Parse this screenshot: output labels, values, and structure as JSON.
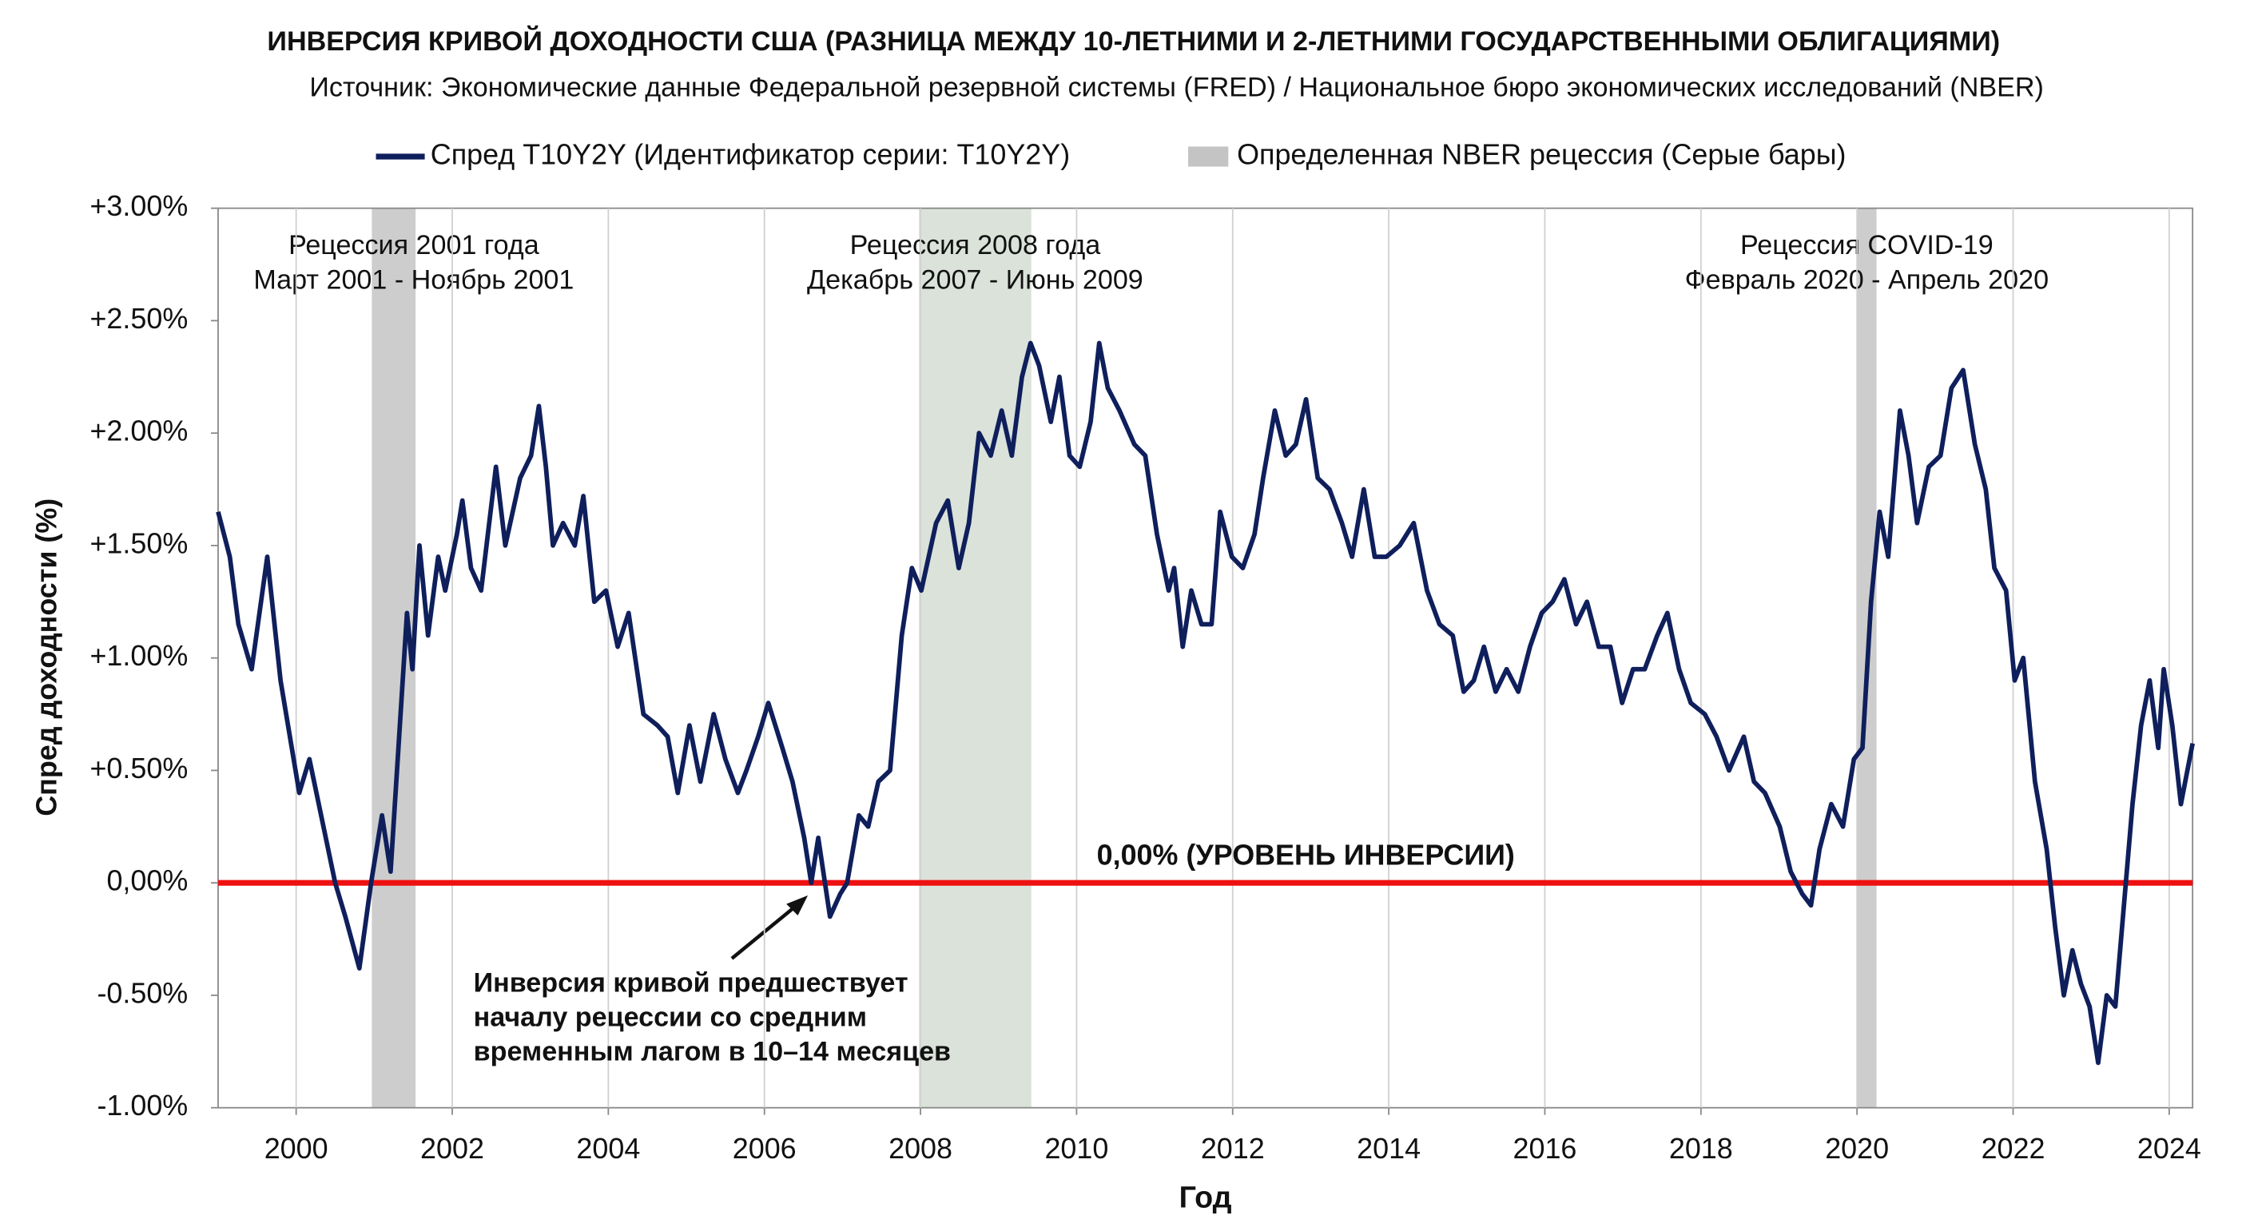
{
  "chart_data": {
    "type": "line",
    "title": "ИНВЕРСИЯ КРИВОЙ ДОХОДНОСТИ США (РАЗНИЦА МЕЖДУ 10-ЛЕТНИМИ И 2-ЛЕТНИМИ ГОСУДАРСТВЕННЫМИ ОБЛИГАЦИЯМИ)",
    "subtitle": "Источник: Экономические данные Федеральной резервной системы (FRED) / Национальное бюро экономических исследований (NBER)",
    "x_label": "Год",
    "y_label": "Спред доходности (%)",
    "xlim": [
      1999.0,
      2024.3
    ],
    "xticks": [
      2000,
      2002,
      2004,
      2006,
      2008,
      2010,
      2012,
      2014,
      2016,
      2018,
      2020,
      2022,
      2024
    ],
    "ylim": [
      -1,
      3
    ],
    "yticks": [
      {
        "value": 3,
        "label": "+3.00%"
      },
      {
        "value": 2.5,
        "label": "+2.50%"
      },
      {
        "value": 2,
        "label": "+2.00%"
      },
      {
        "value": 1.5,
        "label": "+1.50%"
      },
      {
        "value": 1,
        "label": "+1.00%"
      },
      {
        "value": 0.5,
        "label": "+0.50%"
      },
      {
        "value": 0,
        "label": "0,00%"
      },
      {
        "value": -0.5,
        "label": "-0.50%"
      },
      {
        "value": -1,
        "label": "-1.00%"
      }
    ],
    "grid": "x",
    "x": [
      1999.0,
      1999.15,
      1999.26,
      1999.43,
      1999.63,
      1999.8,
      2000.04,
      2000.17,
      2000.35,
      2000.5,
      2000.63,
      2000.81,
      2000.96,
      2001.1,
      2001.21,
      2001.42,
      2001.49,
      2001.58,
      2001.69,
      2001.82,
      2001.91,
      2002.06,
      2002.13,
      2002.24,
      2002.37,
      2002.56,
      2002.68,
      2002.87,
      2003.01,
      2003.11,
      2003.2,
      2003.29,
      2003.42,
      2003.57,
      2003.68,
      2003.82,
      2003.97,
      2004.12,
      2004.26,
      2004.45,
      2004.63,
      2004.76,
      2004.89,
      2005.04,
      2005.18,
      2005.35,
      2005.5,
      2005.66,
      2005.77,
      2005.92,
      2006.05,
      2006.23,
      2006.36,
      2006.51,
      2006.6,
      2006.69,
      2006.84,
      2006.97,
      2007.06,
      2007.21,
      2007.33,
      2007.46,
      2007.61,
      2007.76,
      2007.89,
      2008.01,
      2008.2,
      2008.35,
      2008.49,
      2008.62,
      2008.75,
      2008.9,
      2009.04,
      2009.17,
      2009.3,
      2009.41,
      2009.52,
      2009.67,
      2009.78,
      2009.91,
      2010.04,
      2010.18,
      2010.29,
      2010.4,
      2010.55,
      2010.74,
      2010.88,
      2011.03,
      2011.18,
      2011.25,
      2011.36,
      2011.47,
      2011.6,
      2011.73,
      2011.84,
      2011.99,
      2012.13,
      2012.28,
      2012.39,
      2012.54,
      2012.68,
      2012.81,
      2012.94,
      2013.09,
      2013.24,
      2013.4,
      2013.53,
      2013.68,
      2013.82,
      2013.97,
      2014.14,
      2014.32,
      2014.49,
      2014.65,
      2014.82,
      2014.96,
      2015.09,
      2015.22,
      2015.37,
      2015.51,
      2015.66,
      2015.81,
      2015.96,
      2016.1,
      2016.25,
      2016.4,
      2016.54,
      2016.69,
      2016.84,
      2016.99,
      2017.13,
      2017.28,
      2017.44,
      2017.57,
      2017.72,
      2017.87,
      2018.05,
      2018.2,
      2018.36,
      2018.55,
      2018.68,
      2018.82,
      2019.01,
      2019.15,
      2019.3,
      2019.41,
      2019.52,
      2019.67,
      2019.82,
      2019.96,
      2020.07,
      2020.18,
      2020.29,
      2020.4,
      2020.55,
      2020.66,
      2020.77,
      2020.92,
      2021.07,
      2021.21,
      2021.36,
      2021.51,
      2021.65,
      2021.76,
      2021.91,
      2022.02,
      2022.13,
      2022.28,
      2022.43,
      2022.54,
      2022.65,
      2022.76,
      2022.87,
      2022.98,
      2023.09,
      2023.2,
      2023.31,
      2023.42,
      2023.53,
      2023.64,
      2023.75,
      2023.86,
      2023.93,
      2024.04,
      2024.15,
      2024.3
    ],
    "series": [
      {
        "name": "Спред T10Y2Y (Идентификатор серии: T10Y2Y)",
        "color": "#0f1f5c",
        "values": [
          1.65,
          1.45,
          1.15,
          0.95,
          1.45,
          0.9,
          0.4,
          0.55,
          0.25,
          0.0,
          -0.15,
          -0.38,
          0.0,
          0.3,
          0.05,
          1.2,
          0.95,
          1.5,
          1.1,
          1.45,
          1.3,
          1.55,
          1.7,
          1.4,
          1.3,
          1.85,
          1.5,
          1.8,
          1.9,
          2.12,
          1.85,
          1.5,
          1.6,
          1.5,
          1.72,
          1.25,
          1.3,
          1.05,
          1.2,
          0.75,
          0.7,
          0.65,
          0.4,
          0.7,
          0.45,
          0.75,
          0.55,
          0.4,
          0.5,
          0.65,
          0.8,
          0.6,
          0.45,
          0.2,
          0.0,
          0.2,
          -0.15,
          -0.05,
          0.0,
          0.3,
          0.25,
          0.45,
          0.5,
          1.1,
          1.4,
          1.3,
          1.6,
          1.7,
          1.4,
          1.6,
          2.0,
          1.9,
          2.1,
          1.9,
          2.25,
          2.4,
          2.3,
          2.05,
          2.25,
          1.9,
          1.85,
          2.05,
          2.4,
          2.2,
          2.1,
          1.95,
          1.9,
          1.55,
          1.3,
          1.4,
          1.05,
          1.3,
          1.15,
          1.15,
          1.65,
          1.45,
          1.4,
          1.55,
          1.8,
          2.1,
          1.9,
          1.95,
          2.15,
          1.8,
          1.75,
          1.6,
          1.45,
          1.75,
          1.45,
          1.45,
          1.5,
          1.6,
          1.3,
          1.15,
          1.1,
          0.85,
          0.9,
          1.05,
          0.85,
          0.95,
          0.85,
          1.05,
          1.2,
          1.25,
          1.35,
          1.15,
          1.25,
          1.05,
          1.05,
          0.8,
          0.95,
          0.95,
          1.1,
          1.2,
          0.95,
          0.8,
          0.75,
          0.65,
          0.5,
          0.65,
          0.45,
          0.4,
          0.25,
          0.05,
          -0.05,
          -0.1,
          0.15,
          0.35,
          0.25,
          0.55,
          0.6,
          1.25,
          1.65,
          1.45,
          2.1,
          1.9,
          1.6,
          1.85,
          1.9,
          2.2,
          2.28,
          1.95,
          1.75,
          1.4,
          1.3,
          0.9,
          1.0,
          0.45,
          0.15,
          -0.2,
          -0.5,
          -0.3,
          -0.45,
          -0.55,
          -0.8,
          -0.5,
          -0.55,
          -0.1,
          0.35,
          0.7,
          0.9,
          0.6,
          0.95,
          0.7,
          0.35,
          0.62
        ]
      }
    ],
    "recession_legend": "Определенная NBER рецессия (Серые бары)",
    "recessions": [
      {
        "title": "Рецессия 2001 года",
        "period": "Март 2001 - Ноябрь 2001",
        "start": 2000.97,
        "end": 2001.53,
        "color": "#c4c4c4"
      },
      {
        "title": "Рецессия 2008 года",
        "period": "Декабрь 2007 - Июнь 2009",
        "start": 2007.98,
        "end": 2009.42,
        "color": "#d3ddd3"
      },
      {
        "title": "Рецессия COVID-19",
        "period": "Февраль 2020 - Апрель 2020",
        "start": 2020.0,
        "end": 2020.25,
        "color": "#c4c4c4"
      }
    ],
    "reference_line": {
      "value": 0,
      "label": "0,00% (УРОВЕНЬ ИНВЕРСИИ)",
      "color": "#ee1111"
    },
    "annotation": [
      "Инверсия кривой предшествует",
      "началу рецессии со средним",
      "временным лагом в 10–14 месяцев"
    ]
  }
}
